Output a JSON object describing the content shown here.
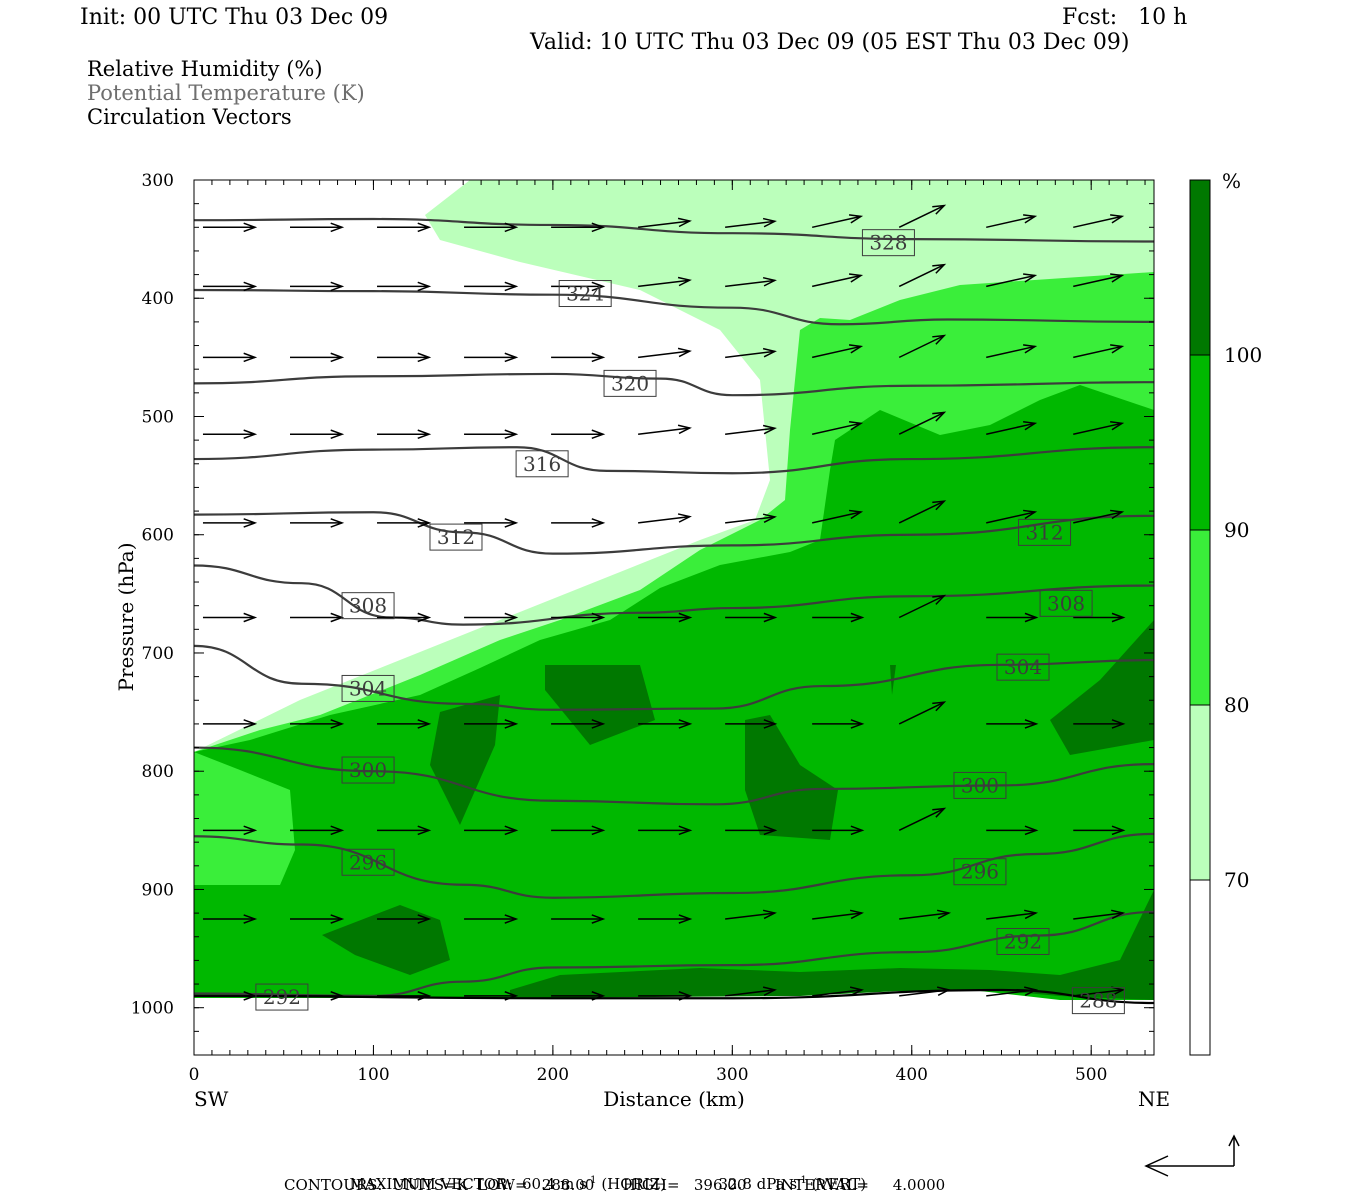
{
  "header": {
    "init": "Init: 00 UTC Thu 03 Dec 09",
    "fcst": "Fcst:   10 h",
    "valid": "Valid: 10 UTC Thu 03 Dec 09 (05 EST Thu 03 Dec 09)"
  },
  "legend": {
    "line1": "Relative Humidity (%)",
    "line2": "Potential Temperature (K)",
    "line3": "Circulation Vectors"
  },
  "chart_data": {
    "type": "contour-cross-section",
    "xlabel": "Distance (km)",
    "ylabel": "Pressure (hPa)",
    "xlim": [
      0,
      535
    ],
    "ylim": [
      300,
      1040
    ],
    "x_ticks": [
      0,
      100,
      200,
      300,
      400,
      500
    ],
    "y_ticks": [
      300,
      400,
      500,
      600,
      700,
      800,
      900,
      1000
    ],
    "x_end_labels": {
      "left": "SW",
      "right": "NE"
    },
    "colorbar": {
      "unit": "%",
      "levels": [
        70,
        80,
        90,
        100
      ],
      "colors": [
        "#ffffff",
        "#bbffbb",
        "#3aee3a",
        "#00b800",
        "#007800"
      ]
    },
    "theta_contours": [
      {
        "value": 328,
        "label": "328",
        "points": [
          [
            0,
            334
          ],
          [
            100,
            333
          ],
          [
            200,
            338
          ],
          [
            300,
            345
          ],
          [
            400,
            350
          ],
          [
            535,
            352
          ]
        ]
      },
      {
        "value": 324,
        "label": "324",
        "points": [
          [
            0,
            393
          ],
          [
            100,
            394
          ],
          [
            200,
            397
          ],
          [
            300,
            408
          ],
          [
            360,
            422
          ],
          [
            420,
            418
          ],
          [
            535,
            420
          ]
        ]
      },
      {
        "value": 320,
        "label": "320",
        "points": [
          [
            0,
            472
          ],
          [
            100,
            466
          ],
          [
            200,
            464
          ],
          [
            260,
            468
          ],
          [
            300,
            482
          ],
          [
            400,
            474
          ],
          [
            535,
            471
          ]
        ]
      },
      {
        "value": 316,
        "label": "316",
        "points": [
          [
            0,
            536
          ],
          [
            100,
            528
          ],
          [
            180,
            526
          ],
          [
            230,
            546
          ],
          [
            300,
            548
          ],
          [
            400,
            536
          ],
          [
            535,
            526
          ]
        ]
      },
      {
        "value": 312,
        "label": "312",
        "points": [
          [
            0,
            583
          ],
          [
            100,
            581
          ],
          [
            150,
            598
          ],
          [
            200,
            616
          ],
          [
            300,
            609
          ],
          [
            400,
            600
          ],
          [
            535,
            584
          ]
        ]
      },
      {
        "value": 308,
        "label": "308",
        "points": [
          [
            0,
            626
          ],
          [
            60,
            641
          ],
          [
            110,
            670
          ],
          [
            150,
            676
          ],
          [
            250,
            666
          ],
          [
            300,
            662
          ],
          [
            400,
            652
          ],
          [
            535,
            643
          ]
        ]
      },
      {
        "value": 304,
        "label": "304",
        "points": [
          [
            0,
            694
          ],
          [
            60,
            726
          ],
          [
            150,
            743
          ],
          [
            200,
            748
          ],
          [
            290,
            747
          ],
          [
            350,
            728
          ],
          [
            450,
            710
          ],
          [
            535,
            706
          ]
        ]
      },
      {
        "value": 300,
        "label": "300",
        "points": [
          [
            0,
            780
          ],
          [
            100,
            800
          ],
          [
            200,
            825
          ],
          [
            290,
            828
          ],
          [
            350,
            815
          ],
          [
            450,
            812
          ],
          [
            535,
            794
          ]
        ]
      },
      {
        "value": 296,
        "label": "296",
        "points": [
          [
            0,
            855
          ],
          [
            60,
            862
          ],
          [
            150,
            896
          ],
          [
            200,
            907
          ],
          [
            300,
            903
          ],
          [
            400,
            888
          ],
          [
            470,
            870
          ],
          [
            535,
            853
          ]
        ]
      },
      {
        "value": 292,
        "label": "292",
        "points": [
          [
            0,
            988
          ],
          [
            100,
            990
          ],
          [
            150,
            978
          ],
          [
            200,
            966
          ],
          [
            300,
            964
          ],
          [
            400,
            953
          ],
          [
            470,
            939
          ],
          [
            535,
            919
          ]
        ]
      },
      {
        "value": 288,
        "label": "288",
        "points": [
          [
            0,
            990
          ],
          [
            200,
            992
          ],
          [
            300,
            992
          ],
          [
            450,
            985
          ],
          [
            535,
            996
          ]
        ]
      }
    ],
    "contour_labels": [
      {
        "value": "328",
        "x": 387,
        "p": 353
      },
      {
        "value": "324",
        "x": 218,
        "p": 396
      },
      {
        "value": "320",
        "x": 243,
        "p": 472
      },
      {
        "value": "316",
        "x": 194,
        "p": 540
      },
      {
        "value": "312",
        "x": 146,
        "p": 602
      },
      {
        "value": "308",
        "x": 97,
        "p": 660
      },
      {
        "value": "304",
        "x": 97,
        "p": 730
      },
      {
        "value": "300",
        "x": 97,
        "p": 799
      },
      {
        "value": "300",
        "x": 438,
        "p": 812
      },
      {
        "value": "296",
        "x": 97,
        "p": 877
      },
      {
        "value": "296",
        "x": 438,
        "p": 885
      },
      {
        "value": "292",
        "x": 49,
        "p": 991
      },
      {
        "value": "292",
        "x": 462,
        "p": 944
      },
      {
        "value": "312",
        "x": 474,
        "p": 598
      },
      {
        "value": "308",
        "x": 486,
        "p": 658
      },
      {
        "value": "304",
        "x": 462,
        "p": 712
      },
      {
        "value": "288",
        "x": 504,
        "p": 994
      }
    ],
    "vector_levels": [
      340,
      390,
      450,
      515,
      590,
      670,
      760,
      850,
      925,
      990
    ],
    "footer": {
      "max_vector_prefix": "MAXIMUM VECTOR:",
      "horiz_value": "60.4 m s",
      "horiz_exp": "-1",
      "horiz_suffix": " (HORIZ)",
      "vert_value": "32.8 dPa s",
      "vert_exp": "-1",
      "vert_suffix": " (VERT)",
      "contours": "CONTOURS:  UNITS=K  LOW=   288.00      HIGH=   396.00      INTERVAL=     4.0000"
    }
  }
}
